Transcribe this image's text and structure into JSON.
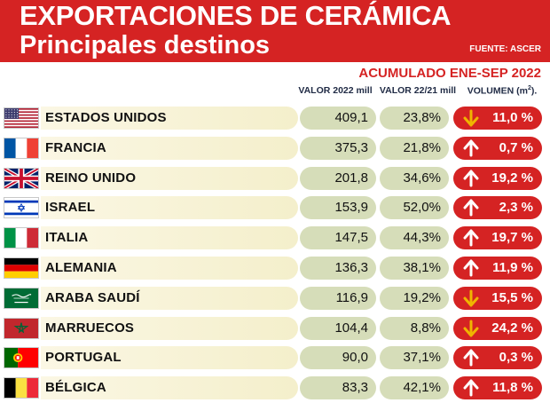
{
  "title": "EXPORTACIONES DE CERÁMICA",
  "subtitle": "Principales destinos",
  "source": "FUENTE: ASCER",
  "period": "ACUMULADO ENE-SEP 2022",
  "columns": {
    "value": "VALOR 2022 mill",
    "variation": "VALOR 22/21 mill",
    "volume": "VOLUMEN (m",
    "volume_sup": "2",
    "volume_end": ")."
  },
  "colors": {
    "brand_red": "#d52323",
    "row_band": "#f4efcb",
    "value_cell": "#d6ddb9",
    "arrow_down": "#f0b400",
    "arrow_up": "#ffffff"
  },
  "chart_data": {
    "type": "table",
    "title": "EXPORTACIONES DE CERÁMICA",
    "subtitle": "Principales destinos",
    "rows": [
      {
        "country": "ESTADOS UNIDOS",
        "flag": "us-flag",
        "value": "409,1",
        "variation": "23,8%",
        "volume": "11,0 %",
        "trend": "down"
      },
      {
        "country": "FRANCIA",
        "flag": "france-flag",
        "value": "375,3",
        "variation": "21,8%",
        "volume": "0,7 %",
        "trend": "up"
      },
      {
        "country": "REINO UNIDO",
        "flag": "uk-flag",
        "value": "201,8",
        "variation": "34,6%",
        "volume": "19,2 %",
        "trend": "up"
      },
      {
        "country": "ISRAEL",
        "flag": "israel-flag",
        "value": "153,9",
        "variation": "52,0%",
        "volume": "2,3 %",
        "trend": "up"
      },
      {
        "country": "ITALIA",
        "flag": "italy-flag",
        "value": "147,5",
        "variation": "44,3%",
        "volume": "19,7 %",
        "trend": "up"
      },
      {
        "country": "ALEMANIA",
        "flag": "germany-flag",
        "value": "136,3",
        "variation": "38,1%",
        "volume": "11,9 %",
        "trend": "up"
      },
      {
        "country": "ARABA SAUDÍ",
        "flag": "saudi-flag",
        "value": "116,9",
        "variation": "19,2%",
        "volume": "15,5 %",
        "trend": "down"
      },
      {
        "country": "MARRUECOS",
        "flag": "morocco-flag",
        "value": "104,4",
        "variation": "8,8%",
        "volume": "24,2 %",
        "trend": "down"
      },
      {
        "country": "PORTUGAL",
        "flag": "portugal-flag",
        "value": "90,0",
        "variation": "37,1%",
        "volume": "0,3 %",
        "trend": "up"
      },
      {
        "country": "BÉLGICA",
        "flag": "belgium-flag",
        "value": "83,3",
        "variation": "42,1%",
        "volume": "11,8 %",
        "trend": "up"
      }
    ]
  }
}
